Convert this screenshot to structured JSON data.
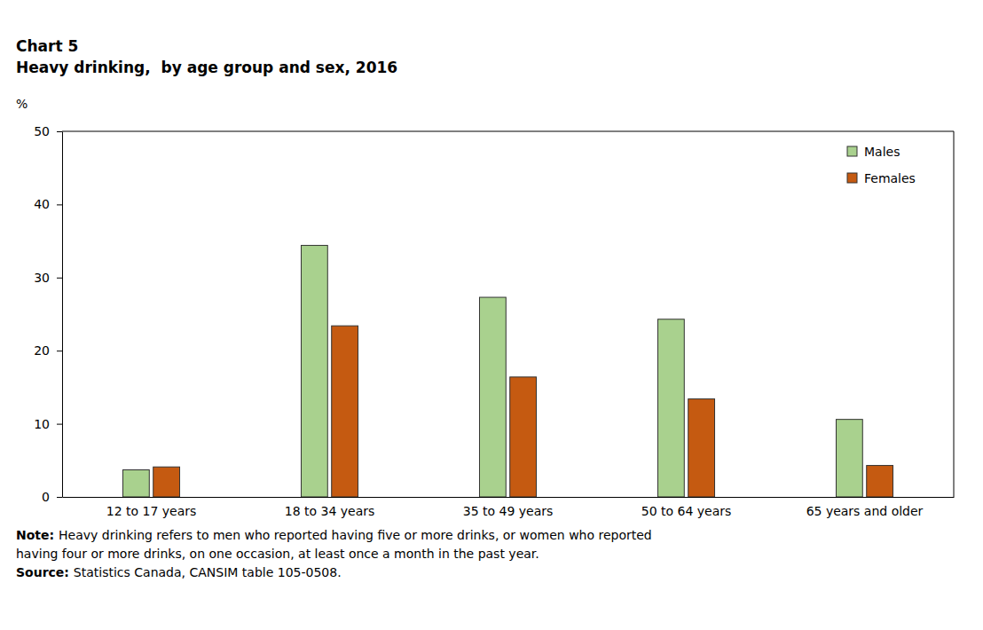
{
  "chart_data": {
    "type": "bar",
    "title": "Chart 5",
    "subtitle": "Heavy drinking,  by age group and sex, 2016",
    "y_label": "%",
    "categories": [
      "12 to 17 years",
      "18 to 34 years",
      "35 to 49 years",
      "50 to 64 years",
      "65 years and older"
    ],
    "series": [
      {
        "name": "Males",
        "color": "#a9d18e",
        "values": [
          3.7,
          34.4,
          27.3,
          24.3,
          10.6
        ]
      },
      {
        "name": "Females",
        "color": "#c55a11",
        "values": [
          4.1,
          23.4,
          16.4,
          13.4,
          4.3
        ]
      }
    ],
    "ylim": [
      0,
      50
    ],
    "yticks": [
      0,
      10,
      20,
      30,
      40,
      50
    ],
    "grid": false,
    "legend": "top-right",
    "notes": [
      {
        "label": "Note:",
        "lines": [
          "Heavy drinking refers to men who reported having five or more drinks, or women who reported",
          "having four or more drinks, on one occasion, at least once a month in the past year."
        ]
      },
      {
        "label": "Source:",
        "lines": [
          "Statistics Canada, CANSIM table 105-0508."
        ]
      }
    ]
  }
}
